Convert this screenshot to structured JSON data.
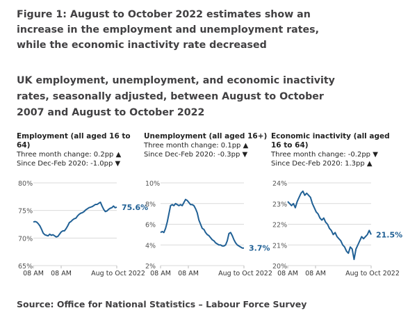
{
  "title": "Figure 1: August to October 2022 estimates show an increase in the employment and unemployment rates, while the economic inactivity rate decreased",
  "subtitle": "UK employment, unemployment, and economic inactivity rates, seasonally adjusted, between August to October 2007 and August to October 2022",
  "source": "Source: Office for National Statistics – Labour Force Survey",
  "colors": {
    "line": "#206095",
    "grid": "#d9d9d9"
  },
  "chart_data": [
    {
      "type": "line",
      "title": "Employment (all aged 16 to 64)",
      "notes": [
        "Three month change: 0.2pp ▲",
        "Since Dec-Feb 2020: -1.0pp ▼"
      ],
      "x_range": [
        "Aug to Oct 2007",
        "Aug to Oct 2022"
      ],
      "xticks": [
        "08 AM",
        "08 AM",
        "Aug to Oct 2022"
      ],
      "yticks": [
        "80%",
        "75%",
        "70%",
        "65%"
      ],
      "ylim": [
        65,
        80
      ],
      "last_label": "75.6%",
      "values": [
        72.9,
        73.0,
        72.9,
        72.6,
        72.2,
        71.6,
        70.9,
        70.6,
        70.5,
        70.4,
        70.7,
        70.5,
        70.6,
        70.4,
        70.2,
        70.3,
        70.7,
        71.1,
        71.3,
        71.3,
        71.7,
        72.2,
        72.8,
        73.0,
        73.3,
        73.5,
        73.6,
        74.0,
        74.3,
        74.5,
        74.6,
        74.8,
        75.1,
        75.3,
        75.5,
        75.6,
        75.7,
        75.9,
        76.1,
        76.1,
        76.3,
        76.5,
        75.8,
        75.2,
        74.8,
        74.9,
        75.2,
        75.4,
        75.5,
        75.8,
        75.5,
        75.6
      ]
    },
    {
      "type": "line",
      "title": "Unemployment (all aged 16+)",
      "notes": [
        "Three month change: 0.1pp ▲",
        "Since Dec-Feb 2020: -0.3pp ▼"
      ],
      "x_range": [
        "Aug to Oct 2007",
        "Aug to Oct 2022"
      ],
      "xticks": [
        "08 AM",
        "08 AM",
        "Aug to Oct 2022"
      ],
      "yticks": [
        "10%",
        "8%",
        "6%",
        "4%",
        "2%"
      ],
      "ylim": [
        2,
        10
      ],
      "last_label": "3.7%",
      "values": [
        5.2,
        5.3,
        5.2,
        5.6,
        6.2,
        7.0,
        7.8,
        7.9,
        7.8,
        8.0,
        7.9,
        7.8,
        7.9,
        7.8,
        8.1,
        8.4,
        8.3,
        8.1,
        7.9,
        7.9,
        7.8,
        7.5,
        7.1,
        6.4,
        6.0,
        5.6,
        5.5,
        5.2,
        5.0,
        4.9,
        4.7,
        4.5,
        4.4,
        4.2,
        4.1,
        4.0,
        4.0,
        3.9,
        3.9,
        4.0,
        4.4,
        5.1,
        5.2,
        4.9,
        4.5,
        4.2,
        4.0,
        3.9,
        3.8,
        3.7,
        3.7
      ]
    },
    {
      "type": "line",
      "title": "Economic inactivity (all aged 16 to 64)",
      "notes": [
        "Three month change: -0.2pp ▼",
        "Since Dec-Feb 2020: 1.3pp ▲"
      ],
      "x_range": [
        "Aug to Oct 2007",
        "Aug to Oct 2022"
      ],
      "xticks": [
        "08 AM",
        "08 AM",
        "Aug to Oct 2022"
      ],
      "yticks": [
        "24%",
        "23%",
        "22%",
        "21%",
        "20%"
      ],
      "ylim": [
        20,
        24
      ],
      "last_label": "21.5%",
      "values": [
        23.1,
        23.0,
        22.9,
        23.0,
        22.8,
        23.1,
        23.3,
        23.5,
        23.6,
        23.4,
        23.5,
        23.4,
        23.3,
        23.0,
        22.8,
        22.6,
        22.5,
        22.3,
        22.2,
        22.3,
        22.1,
        22.0,
        21.8,
        21.7,
        21.5,
        21.6,
        21.4,
        21.3,
        21.2,
        21.0,
        20.9,
        20.7,
        20.6,
        20.9,
        20.8,
        20.3,
        20.8,
        21.0,
        21.2,
        21.4,
        21.3,
        21.4,
        21.5,
        21.7,
        21.5
      ]
    }
  ]
}
